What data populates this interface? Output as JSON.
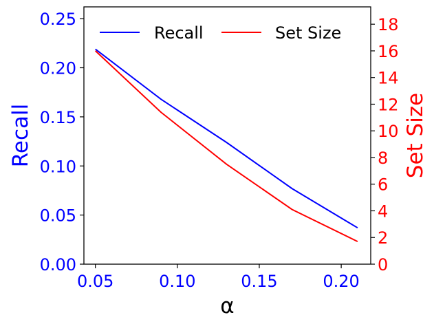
{
  "chart_data": {
    "type": "line",
    "xlabel": "α",
    "x_ticks": [
      "0.05",
      "0.10",
      "0.15",
      "0.20"
    ],
    "x_tick_values": [
      0.05,
      0.1,
      0.15,
      0.2
    ],
    "xlim": [
      0.043,
      0.218
    ],
    "y_left": {
      "label": "Recall",
      "color": "#0000ff",
      "lim": [
        0.0,
        0.262
      ],
      "ticks": [
        "0.00",
        "0.05",
        "0.10",
        "0.15",
        "0.20",
        "0.25"
      ],
      "tick_values": [
        0.0,
        0.05,
        0.1,
        0.15,
        0.2,
        0.25
      ]
    },
    "y_right": {
      "label": "Set Size",
      "color": "#ff0000",
      "lim": [
        0,
        19.3
      ],
      "ticks": [
        "0",
        "2",
        "4",
        "6",
        "8",
        "10",
        "12",
        "14",
        "16",
        "18"
      ],
      "tick_values": [
        0,
        2,
        4,
        6,
        8,
        10,
        12,
        14,
        16,
        18
      ]
    },
    "legend_position": "top",
    "grid": false,
    "series": [
      {
        "name": "Recall",
        "axis": "left",
        "color": "#0000ff",
        "x": [
          0.05,
          0.09,
          0.13,
          0.17,
          0.21
        ],
        "values": [
          0.219,
          0.168,
          0.124,
          0.077,
          0.037
        ]
      },
      {
        "name": "Set Size",
        "axis": "right",
        "color": "#ff0000",
        "x": [
          0.05,
          0.09,
          0.13,
          0.17,
          0.21
        ],
        "values": [
          16.0,
          11.4,
          7.5,
          4.1,
          1.7
        ]
      }
    ]
  }
}
